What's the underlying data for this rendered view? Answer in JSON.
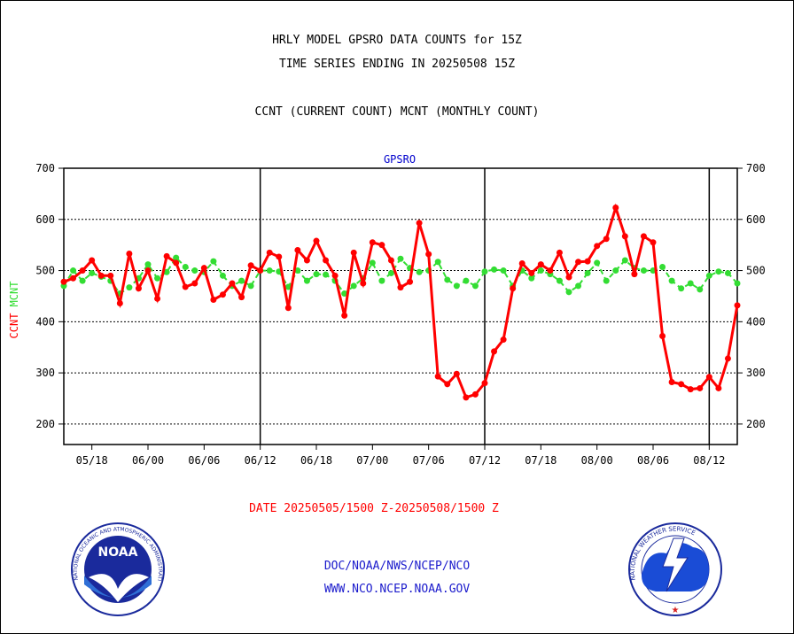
{
  "header": {
    "line1": "HRLY MODEL GPSRO DATA COUNTS for 15Z",
    "line2": "TIME SERIES ENDING IN 20250508 15Z",
    "line3": "CCNT (CURRENT COUNT) MCNT (MONTHLY COUNT)"
  },
  "footer": {
    "date_range": "DATE 20250505/1500 Z-20250508/1500 Z",
    "org_path": "DOC/NOAA/NWS/NCEP/NCO",
    "website": "WWW.NCO.NCEP.NOAA.GOV"
  },
  "logos": {
    "left_text": "NOAA",
    "left_ring": "NATIONAL OCEANIC AND ATMOSPHERIC ADMINISTRATION · U.S. DEPARTMENT OF COMMERCE",
    "right_ring": "NATIONAL WEATHER SERVICE"
  },
  "colors": {
    "ccnt": "#ff0000",
    "mcnt": "#33dd33",
    "panel_title": "#0000cc",
    "date": "#ff0000"
  },
  "chart_data": {
    "type": "line",
    "title": "GPSRO",
    "ylabel_red": "CCNT",
    "ylabel_green": "MCNT",
    "ylim": [
      160,
      700
    ],
    "yticks": [
      200,
      300,
      400,
      500,
      600,
      700
    ],
    "xlim": [
      0,
      72
    ],
    "x_tick_labels": [
      {
        "x": 3,
        "label": "05/18"
      },
      {
        "x": 9,
        "label": "06/00"
      },
      {
        "x": 15,
        "label": "06/06"
      },
      {
        "x": 21,
        "label": "06/12"
      },
      {
        "x": 27,
        "label": "06/18"
      },
      {
        "x": 33,
        "label": "07/00"
      },
      {
        "x": 39,
        "label": "07/06"
      },
      {
        "x": 45,
        "label": "07/12"
      },
      {
        "x": 51,
        "label": "07/18"
      },
      {
        "x": 57,
        "label": "08/00"
      },
      {
        "x": 63,
        "label": "08/06"
      },
      {
        "x": 69,
        "label": "08/12"
      }
    ],
    "day_dividers": [
      21,
      45,
      69
    ],
    "grid": "horizontal dotted",
    "series": [
      {
        "name": "CCNT",
        "color": "#ff0000",
        "x": [
          0,
          1,
          2,
          3,
          4,
          5,
          6,
          7,
          8,
          9,
          10,
          11,
          12,
          13,
          14,
          15,
          16,
          17,
          18,
          19,
          20,
          21,
          22,
          23,
          24,
          25,
          26,
          27,
          28,
          29,
          30,
          31,
          32,
          33,
          34,
          35,
          36,
          37,
          38,
          39,
          40,
          41,
          42,
          43,
          44,
          45,
          46,
          47,
          48,
          49,
          50,
          51,
          52,
          53,
          54,
          55,
          56,
          57,
          58,
          59,
          60,
          61,
          62,
          63,
          64,
          65,
          66,
          67,
          68,
          69,
          70,
          71,
          72
        ],
        "values": [
          478,
          485,
          500,
          520,
          490,
          490,
          436,
          533,
          465,
          500,
          445,
          528,
          515,
          468,
          475,
          505,
          443,
          453,
          475,
          448,
          510,
          500,
          535,
          527,
          427,
          540,
          520,
          558,
          520,
          490,
          412,
          535,
          475,
          555,
          550,
          520,
          467,
          478,
          593,
          532,
          293,
          278,
          298,
          252,
          258,
          280,
          342,
          365,
          465,
          514,
          495,
          512,
          500,
          535,
          487,
          517,
          518,
          548,
          562,
          623,
          567,
          493,
          567,
          555,
          372,
          282,
          278,
          268,
          270,
          292,
          270,
          328,
          432
        ]
      },
      {
        "name": "MCNT",
        "color": "#33dd33",
        "x": [
          0,
          1,
          2,
          3,
          4,
          5,
          6,
          7,
          8,
          9,
          10,
          11,
          12,
          13,
          14,
          15,
          16,
          17,
          18,
          19,
          20,
          21,
          22,
          23,
          24,
          25,
          26,
          27,
          28,
          29,
          30,
          31,
          32,
          33,
          34,
          35,
          36,
          37,
          38,
          39,
          40,
          41,
          42,
          43,
          44,
          45,
          46,
          47,
          48,
          49,
          50,
          51,
          52,
          53,
          54,
          55,
          56,
          57,
          58,
          59,
          60,
          61,
          62,
          63,
          64,
          65,
          66,
          67,
          68,
          69,
          70,
          71,
          72
        ],
        "values": [
          470,
          500,
          480,
          495,
          488,
          480,
          455,
          467,
          485,
          512,
          485,
          497,
          525,
          507,
          500,
          497,
          518,
          490,
          470,
          480,
          470,
          500,
          500,
          498,
          468,
          500,
          480,
          493,
          492,
          480,
          455,
          470,
          485,
          515,
          480,
          495,
          523,
          505,
          497,
          500,
          517,
          482,
          470,
          480,
          470,
          498,
          502,
          500,
          470,
          500,
          485,
          500,
          493,
          480,
          458,
          470,
          495,
          515,
          480,
          500,
          520,
          505,
          500,
          500,
          507,
          480,
          465,
          475,
          463,
          490,
          498,
          495,
          475
        ]
      }
    ]
  }
}
